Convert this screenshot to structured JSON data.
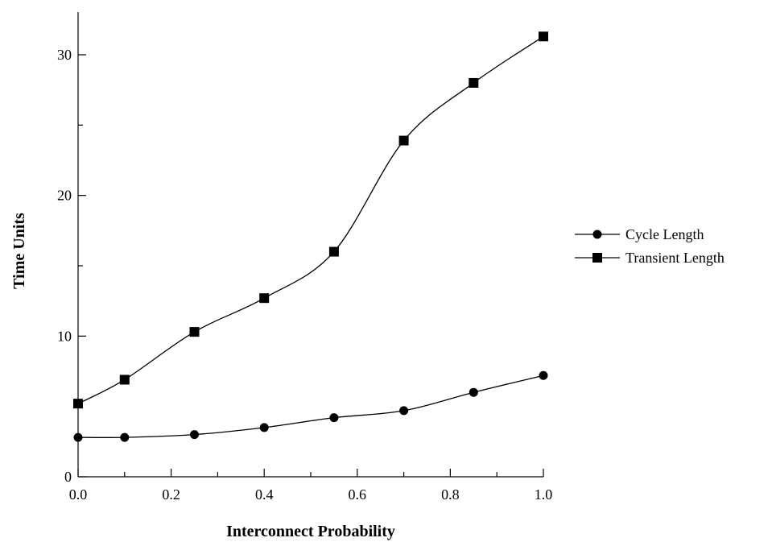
{
  "chart_data": {
    "type": "line",
    "title": "",
    "xlabel": "Interconnect Probability",
    "ylabel": "Time Units",
    "xlim": [
      0.0,
      1.0
    ],
    "ylim": [
      0,
      33
    ],
    "x_ticks": [
      "0.0",
      "0.2",
      "0.4",
      "0.6",
      "0.8",
      "1.0"
    ],
    "y_ticks": [
      "0",
      "10",
      "20",
      "30"
    ],
    "grid": false,
    "legend_position": "right",
    "x": [
      0.0,
      0.1,
      0.25,
      0.4,
      0.55,
      0.7,
      0.85,
      1.0
    ],
    "series": [
      {
        "name": "Cycle Length",
        "marker": "circle",
        "values": [
          2.8,
          2.8,
          3.0,
          3.5,
          4.2,
          4.7,
          6.0,
          7.2
        ]
      },
      {
        "name": "Transient Length",
        "marker": "square",
        "values": [
          5.2,
          6.9,
          10.3,
          12.7,
          16.0,
          23.9,
          28.0,
          31.3
        ]
      }
    ],
    "colors": {
      "line": "#000000",
      "marker": "#000000"
    }
  }
}
